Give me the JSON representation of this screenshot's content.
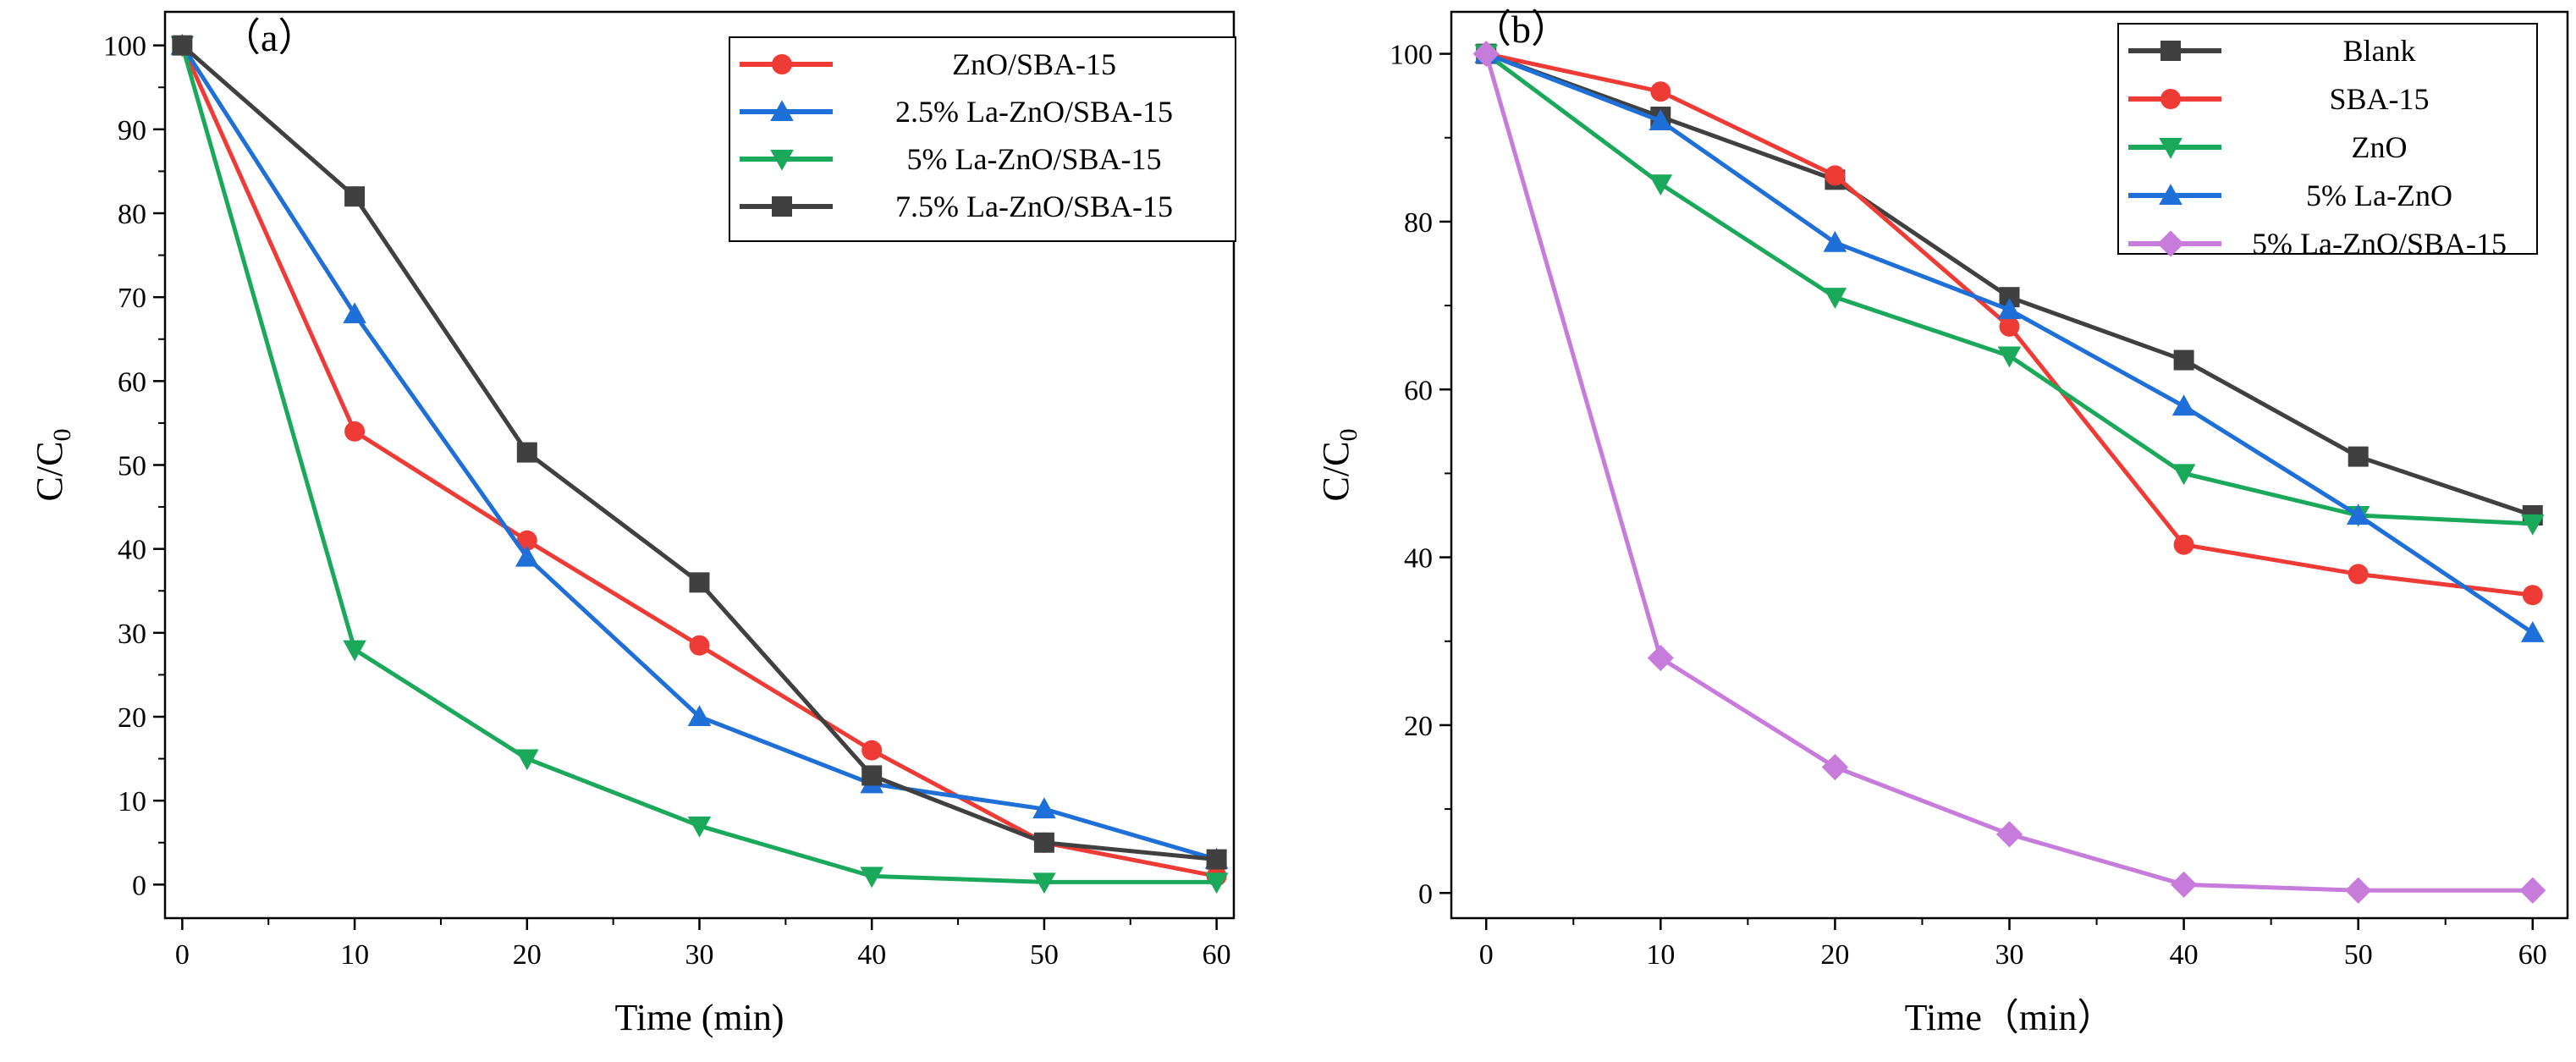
{
  "chart_data": [
    {
      "panel_label": "（a）",
      "type": "line",
      "xlabel": "Time (min)",
      "ylabel": "C/C",
      "ylabel_sub": "0",
      "xlim": [
        -1,
        61
      ],
      "ylim": [
        -4,
        104
      ],
      "xticks": [
        "0",
        "10",
        "20",
        "30",
        "40",
        "50",
        "60"
      ],
      "yticks": [
        "0",
        "10",
        "20",
        "30",
        "40",
        "50",
        "60",
        "70",
        "80",
        "90",
        "100"
      ],
      "x": [
        0,
        10,
        20,
        30,
        40,
        50,
        60
      ],
      "legend_position": "top-right",
      "series": [
        {
          "name": "ZnO/SBA-15",
          "color": "#ef3b36",
          "marker": "circle",
          "values": [
            100,
            54,
            41,
            28.5,
            16,
            5,
            1
          ]
        },
        {
          "name": "2.5% La-ZnO/SBA-15",
          "color": "#1f6fd8",
          "marker": "triangle-up",
          "values": [
            100,
            68,
            39,
            20,
            12,
            9,
            3
          ]
        },
        {
          "name": "5% La-ZnO/SBA-15",
          "color": "#1aa95a",
          "marker": "triangle-down",
          "values": [
            100,
            28,
            15,
            7,
            1,
            0.3,
            0.3
          ]
        },
        {
          "name": "7.5% La-ZnO/SBA-15",
          "color": "#404040",
          "marker": "square",
          "values": [
            100,
            82,
            51.5,
            36,
            13,
            5,
            3
          ]
        }
      ]
    },
    {
      "panel_label": "（b）",
      "type": "line",
      "xlabel": "Time（min）",
      "ylabel": "C/C",
      "ylabel_sub": "0",
      "xlim": [
        -2,
        62
      ],
      "ylim": [
        -3,
        105
      ],
      "xticks": [
        "0",
        "10",
        "20",
        "30",
        "40",
        "50",
        "60"
      ],
      "yticks": [
        "0",
        "20",
        "40",
        "60",
        "80",
        "100"
      ],
      "x": [
        0,
        10,
        20,
        30,
        40,
        50,
        60
      ],
      "legend_position": "top-right",
      "series": [
        {
          "name": "Blank",
          "color": "#404040",
          "marker": "square",
          "values": [
            100,
            92.5,
            85,
            71,
            63.5,
            52,
            45
          ]
        },
        {
          "name": "SBA-15",
          "color": "#ef3b36",
          "marker": "circle",
          "values": [
            100,
            95.5,
            85.5,
            67.5,
            41.5,
            38,
            35.5
          ]
        },
        {
          "name": "ZnO",
          "color": "#1aa95a",
          "marker": "triangle-down",
          "values": [
            100,
            84.5,
            71,
            64,
            50,
            45,
            44
          ]
        },
        {
          "name": "5% La-ZnO",
          "color": "#1f6fd8",
          "marker": "triangle-up",
          "values": [
            100,
            92,
            77.5,
            69.5,
            58,
            45,
            31
          ]
        },
        {
          "name": "5% La-ZnO/SBA-15",
          "color": "#c77bdb",
          "marker": "diamond",
          "values": [
            100,
            28,
            15,
            7,
            1,
            0.3,
            0.3
          ]
        }
      ]
    }
  ]
}
